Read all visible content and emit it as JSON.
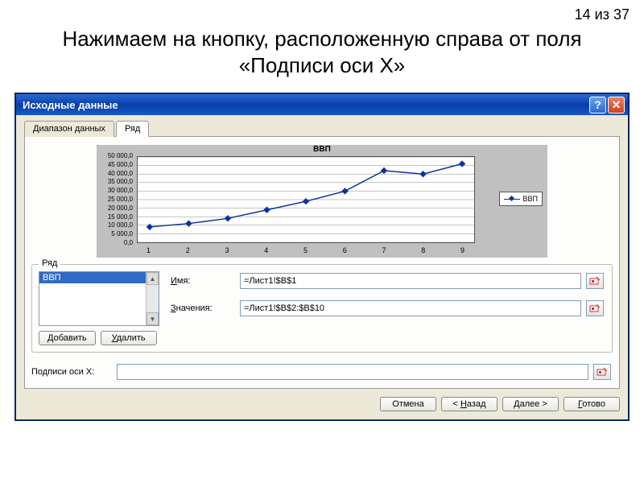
{
  "page_counter": "14 из 37",
  "instruction": "Нажимаем на кнопку, расположенную справа от поля «Подписи оси Х»",
  "dialog": {
    "title": "Исходные данные",
    "tabs": {
      "data_range": "Диапазон данных",
      "series": "Ряд"
    },
    "chart": {
      "title": "ВВП",
      "type": "line",
      "x": [
        1,
        2,
        3,
        4,
        5,
        6,
        7,
        8,
        9
      ],
      "y": [
        9000,
        11000,
        14000,
        19000,
        24000,
        30000,
        42000,
        40000,
        46000
      ],
      "ylim": [
        0,
        50000
      ],
      "yticks": [
        "0,0",
        "5 000,0",
        "10 000,0",
        "15 000,0",
        "20 000,0",
        "25 000,0",
        "30 000,0",
        "35 000,0",
        "40 000,0",
        "45 000,0",
        "50 000,0"
      ],
      "xticks": [
        "1",
        "2",
        "3",
        "4",
        "5",
        "6",
        "7",
        "8",
        "9"
      ],
      "line_color": "#10309f",
      "marker": "diamond",
      "bg_color": "#c0c0c0",
      "plot_bg": "#ffffff",
      "legend_label": "ВВП"
    },
    "series_group": {
      "label": "Ряд",
      "list_selected": "ВВП",
      "name_label": "Имя:",
      "name_value": "=Лист1!$B$1",
      "values_label": "Значения:",
      "values_value": "=Лист1!$B$2:$B$10",
      "add_btn": "Добавить",
      "remove_btn": "Удалить"
    },
    "axis_labels": {
      "label": "Подписи оси X:",
      "value": ""
    },
    "buttons": {
      "cancel": "Отмена",
      "back": "< Назад",
      "next": "Далее >",
      "finish": "Готово"
    }
  }
}
